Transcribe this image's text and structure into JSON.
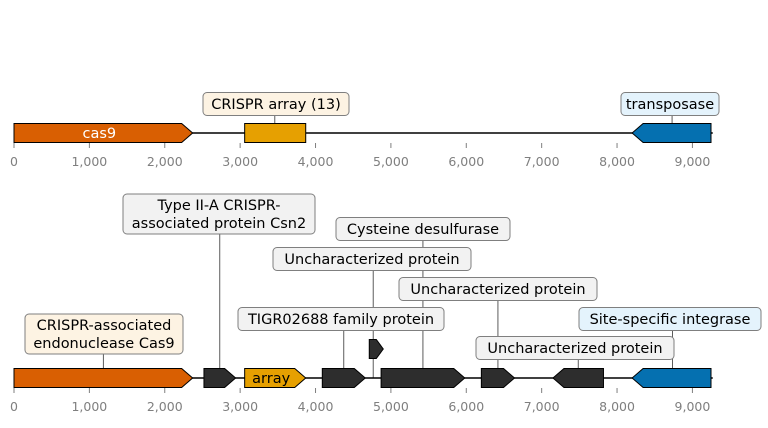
{
  "colors": {
    "cas": "#d95f02",
    "crispr": "#e6a001",
    "integrase": "#0570b0",
    "other": "#2d2d2d",
    "box_crispr": "#fdf3e3",
    "box_integrase": "#e4f3fc",
    "box_other": "#f2f2f2",
    "box_border": "#7f7f7f",
    "axis": "#7f7f7f"
  },
  "tracks": [
    {
      "axis_ticks": [
        "0",
        "1,000",
        "2,000",
        "3,000",
        "4,000",
        "5,000",
        "6,000",
        "7,000",
        "8,000",
        "9,000"
      ],
      "features": [
        {
          "start": 0,
          "end": 2370,
          "strand": 1,
          "category": "cas",
          "inner_label": "cas9"
        },
        {
          "start": 3060,
          "end": 3870,
          "strand": 0,
          "category": "crispr",
          "inner_label": ""
        },
        {
          "start": 8200,
          "end": 9270,
          "strand": -1,
          "category": "integrase",
          "inner_label": ""
        }
      ],
      "callouts": [
        {
          "text": "CRISPR array (13)",
          "anchor": 3460,
          "category": "crispr"
        },
        {
          "text": "transposase",
          "anchor": 8730,
          "category": "integrase"
        }
      ]
    },
    {
      "axis_ticks": [
        "0",
        "1,000",
        "2,000",
        "3,000",
        "4,000",
        "5,000",
        "6,000",
        "7,000",
        "8,000",
        "9,000"
      ],
      "features": [
        {
          "start": 0,
          "end": 2370,
          "strand": 1,
          "category": "cas",
          "inner_label": ""
        },
        {
          "start": 2520,
          "end": 2940,
          "strand": 1,
          "category": "other",
          "inner_label": ""
        },
        {
          "start": 3060,
          "end": 3870,
          "strand": 1,
          "category": "crispr",
          "inner_label": "array"
        },
        {
          "start": 4090,
          "end": 4660,
          "strand": 1,
          "category": "other",
          "inner_label": ""
        },
        {
          "start": 4660,
          "end": 4870,
          "strand": 1,
          "category": "other",
          "inner_label": "",
          "row": 1
        },
        {
          "start": 4870,
          "end": 5980,
          "strand": 1,
          "category": "other",
          "inner_label": ""
        },
        {
          "start": 6200,
          "end": 6640,
          "strand": 1,
          "category": "other",
          "inner_label": ""
        },
        {
          "start": 7150,
          "end": 7820,
          "strand": -1,
          "category": "other",
          "inner_label": ""
        },
        {
          "start": 8200,
          "end": 9270,
          "strand": -1,
          "category": "integrase",
          "inner_label": ""
        }
      ],
      "callouts": [
        {
          "text": "CRISPR-associated\nendonuclease Cas9",
          "anchor": 1185,
          "category": "cas"
        },
        {
          "text": "Type II-A CRISPR-\nassociated protein Csn2",
          "anchor": 2730,
          "category": "other"
        },
        {
          "text": "TIGR02688 family protein",
          "anchor": 4375,
          "category": "other"
        },
        {
          "text": "Uncharacterized protein",
          "anchor": 4765,
          "category": "other"
        },
        {
          "text": "Cysteine desulfurase",
          "anchor": 5425,
          "category": "other"
        },
        {
          "text": "Uncharacterized protein",
          "anchor": 6420,
          "category": "other"
        },
        {
          "text": "Uncharacterized protein",
          "anchor": 7485,
          "category": "other"
        },
        {
          "text": "Site-specific integrase",
          "anchor": 8735,
          "category": "integrase"
        }
      ]
    }
  ]
}
